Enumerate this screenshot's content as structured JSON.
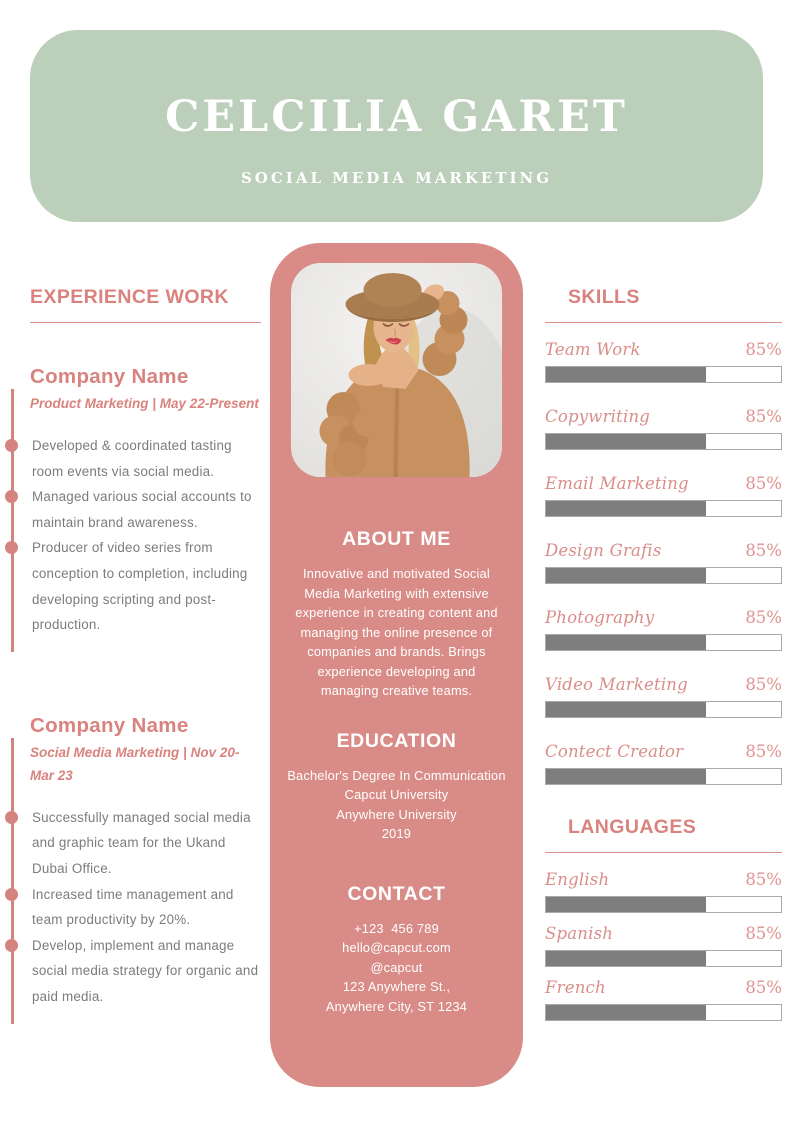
{
  "header": {
    "name": "CELCILIA GARET",
    "subtitle": "SOCIAL MEDIA MARKETING"
  },
  "experience": {
    "title": "EXPERIENCE WORK",
    "jobs": [
      {
        "company": "Company Name",
        "meta": "Product Marketing | May 22-Present",
        "bullets": [
          "Developed & coordinated tasting room events via social media.",
          "Managed various social accounts to maintain brand awareness.",
          "Producer of video series from conception to completion, including developing scripting and post-production."
        ]
      },
      {
        "company": "Company Name",
        "meta": "Social Media Marketing | Nov 20-Mar 23",
        "bullets": [
          "Successfully managed social media and graphic team for the Ukand Dubai Office.",
          "Increased time management and team productivity by 20%.",
          "Develop, implement and manage social media strategy for organic and paid media."
        ]
      }
    ]
  },
  "profile": {
    "photo": "woman-portrait-photo",
    "about": {
      "title": "ABOUT ME",
      "text": "Innovative and motivated Social Media Marketing with extensive experience in creating content and managing the online presence of companies and brands. Brings experience developing and managing creative teams."
    },
    "education": {
      "title": "EDUCATION",
      "lines": [
        "Bachelor's Degree In Communication",
        "Capcut University",
        "Anywhere University",
        "2019"
      ]
    },
    "contact": {
      "title": "CONTACT",
      "lines": [
        "+123  456 789",
        "hello@capcut.com",
        "@capcut",
        "123 Anywhere St.,",
        "Anywhere City, ST 1234"
      ]
    }
  },
  "skills": {
    "title": "SKILLS",
    "items": [
      {
        "label": "Team Work",
        "percent": "85%",
        "fill": 68
      },
      {
        "label": "Copywriting",
        "percent": "85%",
        "fill": 68
      },
      {
        "label": "Email Marketing",
        "percent": "85%",
        "fill": 68
      },
      {
        "label": "Design Grafis",
        "percent": "85%",
        "fill": 68
      },
      {
        "label": "Photography",
        "percent": "85%",
        "fill": 68
      },
      {
        "label": "Video Marketing",
        "percent": "85%",
        "fill": 68
      },
      {
        "label": "Contect Creator",
        "percent": "85%",
        "fill": 68
      }
    ]
  },
  "languages": {
    "title": "LANGUAGES",
    "items": [
      {
        "label": "English",
        "percent": "85%",
        "fill": 68
      },
      {
        "label": "Spanish",
        "percent": "85%",
        "fill": 68
      },
      {
        "label": "French",
        "percent": "85%",
        "fill": 68
      }
    ]
  },
  "colors": {
    "header_green": "#bbcfba",
    "card_pink": "#d98c87",
    "accent_pink": "#d9827e",
    "skill_label_pink": "#d98e88",
    "bar_fill_gray": "#7e7e7e",
    "body_gray": "#7b7c7f"
  }
}
